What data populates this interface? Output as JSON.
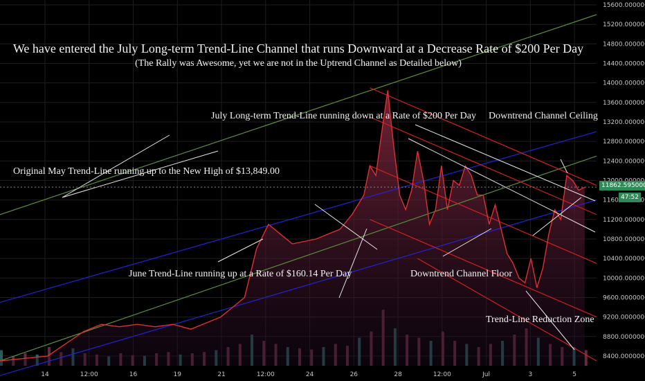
{
  "chart_data": {
    "type": "line",
    "title": "We have entered the July Long-term Trend-Line Channel that runs Downward at a Decrease Rate of $200 Per Day",
    "subtitle": "(The Rally was Awesome, yet we are not in the Uptrend Channel as Detailed below)",
    "xlabel": "",
    "ylabel": "",
    "ylim": [
      8200,
      15700
    ],
    "x_ticks": [
      "14",
      "12:00",
      "16",
      "19",
      "21",
      "12:00",
      "24",
      "26",
      "28",
      "12:00",
      "Jul",
      "3",
      "5"
    ],
    "y_ticks": [
      "8400.00000000",
      "8800.00000000",
      "9200.00000000",
      "9600.00000000",
      "10000.00000000",
      "10400.00000000",
      "10800.00000000",
      "11200.00000000",
      "11600.00000000",
      "12000.00000000",
      "12400.00000000",
      "12800.00000000",
      "13200.00000000",
      "13600.00000000",
      "14000.00000000",
      "14400.00000000",
      "14800.00000000",
      "15200.00000000",
      "15600.00000000"
    ],
    "current_price": "11862.59500000",
    "countdown": "47:52",
    "price_series": [
      [
        0,
        8300
      ],
      [
        0.04,
        8350
      ],
      [
        0.08,
        8400
      ],
      [
        0.11,
        8650
      ],
      [
        0.14,
        8900
      ],
      [
        0.17,
        9050
      ],
      [
        0.2,
        9000
      ],
      [
        0.23,
        9050
      ],
      [
        0.26,
        9000
      ],
      [
        0.29,
        9050
      ],
      [
        0.32,
        8950
      ],
      [
        0.35,
        9100
      ],
      [
        0.37,
        9200
      ],
      [
        0.39,
        9400
      ],
      [
        0.41,
        9600
      ],
      [
        0.43,
        10600
      ],
      [
        0.45,
        11100
      ],
      [
        0.47,
        10900
      ],
      [
        0.49,
        10700
      ],
      [
        0.51,
        10750
      ],
      [
        0.53,
        10800
      ],
      [
        0.55,
        10900
      ],
      [
        0.57,
        11000
      ],
      [
        0.59,
        11300
      ],
      [
        0.61,
        11700
      ],
      [
        0.62,
        12300
      ],
      [
        0.63,
        12100
      ],
      [
        0.64,
        13000
      ],
      [
        0.65,
        13849
      ],
      [
        0.66,
        12700
      ],
      [
        0.67,
        11700
      ],
      [
        0.68,
        11400
      ],
      [
        0.69,
        11800
      ],
      [
        0.7,
        12600
      ],
      [
        0.71,
        12000
      ],
      [
        0.72,
        11100
      ],
      [
        0.73,
        11400
      ],
      [
        0.74,
        12300
      ],
      [
        0.75,
        11400
      ],
      [
        0.76,
        12000
      ],
      [
        0.77,
        11900
      ],
      [
        0.78,
        12300
      ],
      [
        0.79,
        12100
      ],
      [
        0.8,
        11700
      ],
      [
        0.81,
        11700
      ],
      [
        0.82,
        11100
      ],
      [
        0.83,
        11500
      ],
      [
        0.84,
        11000
      ],
      [
        0.85,
        10500
      ],
      [
        0.86,
        10300
      ],
      [
        0.87,
        10000
      ],
      [
        0.88,
        9900
      ],
      [
        0.89,
        10400
      ],
      [
        0.9,
        9800
      ],
      [
        0.91,
        10200
      ],
      [
        0.92,
        10900
      ],
      [
        0.93,
        11400
      ],
      [
        0.94,
        11200
      ],
      [
        0.95,
        12100
      ],
      [
        0.96,
        12000
      ],
      [
        0.97,
        11800
      ],
      [
        0.98,
        11862
      ]
    ],
    "volume_series": [
      [
        0,
        0.25
      ],
      [
        0.02,
        0.15
      ],
      [
        0.04,
        0.2
      ],
      [
        0.06,
        0.18
      ],
      [
        0.08,
        0.3
      ],
      [
        0.1,
        0.22
      ],
      [
        0.12,
        0.28
      ],
      [
        0.14,
        0.2
      ],
      [
        0.16,
        0.18
      ],
      [
        0.18,
        0.15
      ],
      [
        0.2,
        0.2
      ],
      [
        0.22,
        0.17
      ],
      [
        0.24,
        0.16
      ],
      [
        0.26,
        0.2
      ],
      [
        0.28,
        0.22
      ],
      [
        0.3,
        0.18
      ],
      [
        0.32,
        0.2
      ],
      [
        0.34,
        0.22
      ],
      [
        0.36,
        0.25
      ],
      [
        0.38,
        0.3
      ],
      [
        0.4,
        0.35
      ],
      [
        0.42,
        0.5
      ],
      [
        0.44,
        0.4
      ],
      [
        0.46,
        0.35
      ],
      [
        0.48,
        0.3
      ],
      [
        0.5,
        0.28
      ],
      [
        0.52,
        0.26
      ],
      [
        0.54,
        0.3
      ],
      [
        0.56,
        0.35
      ],
      [
        0.58,
        0.32
      ],
      [
        0.6,
        0.45
      ],
      [
        0.62,
        0.55
      ],
      [
        0.64,
        0.9
      ],
      [
        0.66,
        0.6
      ],
      [
        0.68,
        0.5
      ],
      [
        0.7,
        0.45
      ],
      [
        0.72,
        0.4
      ],
      [
        0.74,
        0.55
      ],
      [
        0.76,
        0.4
      ],
      [
        0.78,
        0.35
      ],
      [
        0.8,
        0.3
      ],
      [
        0.82,
        0.35
      ],
      [
        0.84,
        0.4
      ],
      [
        0.86,
        0.5
      ],
      [
        0.88,
        0.6
      ],
      [
        0.9,
        0.45
      ],
      [
        0.92,
        0.35
      ],
      [
        0.94,
        0.3
      ],
      [
        0.96,
        0.3
      ],
      [
        0.98,
        0.25
      ]
    ],
    "trend_lines": [
      {
        "name": "Original May Trend-Line",
        "color": "#5c8f3a",
        "from": [
          0,
          11300
        ],
        "to": [
          1,
          15400
        ]
      },
      {
        "name": "",
        "color": "#5c8f3a",
        "from": [
          0,
          8300
        ],
        "to": [
          1,
          12500
        ]
      },
      {
        "name": "June Trend-Line",
        "color": "#2323d9",
        "from": [
          0,
          9500
        ],
        "to": [
          1,
          13000
        ]
      },
      {
        "name": "",
        "color": "#2323d9",
        "from": [
          0,
          8000
        ],
        "to": [
          1,
          11600
        ]
      },
      {
        "name": "July Long-term Trend-Line",
        "color": "#d02020",
        "from": [
          0.62,
          13900
        ],
        "to": [
          1,
          11900
        ]
      },
      {
        "name": "",
        "color": "#d02020",
        "from": [
          0.62,
          13300
        ],
        "to": [
          1,
          11300
        ]
      },
      {
        "name": "",
        "color": "#d02020",
        "from": [
          0.62,
          12300
        ],
        "to": [
          1,
          10300
        ]
      },
      {
        "name": "",
        "color": "#d02020",
        "from": [
          0.62,
          11200
        ],
        "to": [
          1,
          9200
        ]
      },
      {
        "name": "",
        "color": "#d02020",
        "from": [
          0.7,
          10400
        ],
        "to": [
          1,
          8300
        ]
      }
    ],
    "annotations": {
      "july_line": "July Long-term Trend-Line running down at a Rate of $200 Per Day",
      "ceiling": "Downtrend Channel Ceiling",
      "may_line": "Original May Trend-Line running up to the New High of $13,849.00",
      "june_line": "June Trend-Line running up at a Rate of $160.14 Per Day",
      "floor": "Downtrend Channel Floor",
      "reduction": "Trend-Line Reduction Zone"
    },
    "grid": true,
    "legend": "none"
  },
  "colors": {
    "background": "#000000",
    "grid": "#1e1e1e",
    "price": "#e03030",
    "fill": "#8b2a40",
    "axis_text": "#c8c8c8",
    "price_tag": "#2e8b57",
    "annotation": "#f2f2f2"
  }
}
